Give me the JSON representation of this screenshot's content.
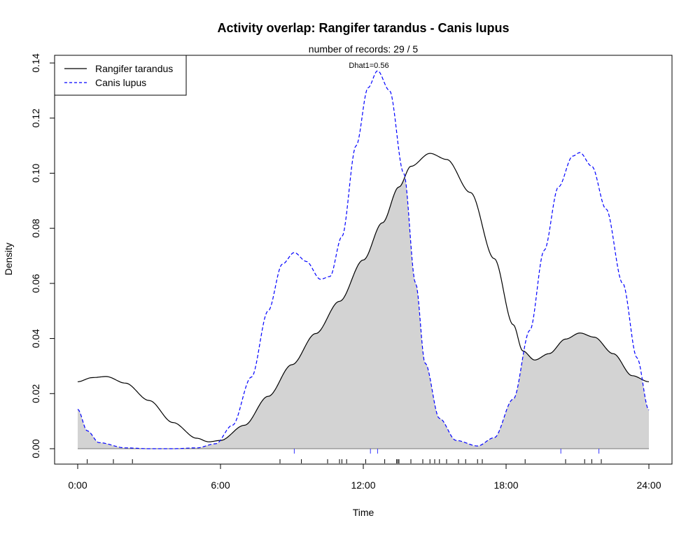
{
  "chart_data": {
    "type": "area",
    "title": "Activity overlap:  Rangifer tarandus - Canis lupus",
    "subtitle": "number of records: 29 / 5",
    "annotation": "Dhat1=0.56",
    "xlabel": "Time",
    "ylabel": "Density",
    "xlim": [
      0,
      24
    ],
    "ylim": [
      0,
      0.14
    ],
    "x_ticks": [
      0,
      6,
      12,
      18,
      24
    ],
    "x_tick_labels": [
      "0:00",
      "6:00",
      "12:00",
      "18:00",
      "24:00"
    ],
    "y_ticks": [
      0,
      0.02,
      0.04,
      0.06,
      0.08,
      0.1,
      0.12,
      0.14
    ],
    "y_tick_labels": [
      "0.00",
      "0.02",
      "0.04",
      "0.06",
      "0.08",
      "0.10",
      "0.12",
      "0.14"
    ],
    "legend_position": "top-left",
    "overlap_fill_color": "#d3d3d3",
    "series": [
      {
        "name": "Rangifer tarandus",
        "line_style": "solid",
        "color": "#000000",
        "points": [
          [
            0,
            0.0243
          ],
          [
            0.6,
            0.0258
          ],
          [
            1.2,
            0.0262
          ],
          [
            2,
            0.0238
          ],
          [
            3,
            0.0175
          ],
          [
            4,
            0.0095
          ],
          [
            5,
            0.0038
          ],
          [
            5.5,
            0.0025
          ],
          [
            6,
            0.003
          ],
          [
            7,
            0.0085
          ],
          [
            8,
            0.019
          ],
          [
            9,
            0.0305
          ],
          [
            10,
            0.0418
          ],
          [
            11,
            0.0535
          ],
          [
            12,
            0.0685
          ],
          [
            12.8,
            0.082
          ],
          [
            13.5,
            0.095
          ],
          [
            14,
            0.1025
          ],
          [
            14.8,
            0.1072
          ],
          [
            15.5,
            0.105
          ],
          [
            16.5,
            0.093
          ],
          [
            17.5,
            0.069
          ],
          [
            18.3,
            0.045
          ],
          [
            18.7,
            0.0355
          ],
          [
            19.2,
            0.0322
          ],
          [
            19.8,
            0.0345
          ],
          [
            20.5,
            0.0398
          ],
          [
            21.1,
            0.042
          ],
          [
            21.7,
            0.0405
          ],
          [
            22.5,
            0.0345
          ],
          [
            23.3,
            0.0265
          ],
          [
            24,
            0.0243
          ]
        ]
      },
      {
        "name": "Canis lupus",
        "line_style": "dashed",
        "color": "#0000ff",
        "points": [
          [
            0,
            0.0143
          ],
          [
            0.4,
            0.0065
          ],
          [
            0.9,
            0.0022
          ],
          [
            2,
            0.0003
          ],
          [
            3,
            0
          ],
          [
            4,
            0
          ],
          [
            5,
            0.0003
          ],
          [
            5.8,
            0.0018
          ],
          [
            6.5,
            0.0085
          ],
          [
            7.3,
            0.026
          ],
          [
            8,
            0.05
          ],
          [
            8.6,
            0.067
          ],
          [
            9.1,
            0.0712
          ],
          [
            9.6,
            0.068
          ],
          [
            10.2,
            0.0615
          ],
          [
            10.6,
            0.0625
          ],
          [
            11.1,
            0.077
          ],
          [
            11.7,
            0.11
          ],
          [
            12.2,
            0.131
          ],
          [
            12.6,
            0.1372
          ],
          [
            13.1,
            0.13
          ],
          [
            13.7,
            0.1
          ],
          [
            14.2,
            0.06
          ],
          [
            14.6,
            0.031
          ],
          [
            15.2,
            0.011
          ],
          [
            15.9,
            0.003
          ],
          [
            16.8,
            0.001
          ],
          [
            17.5,
            0.004
          ],
          [
            18.3,
            0.018
          ],
          [
            19,
            0.043
          ],
          [
            19.6,
            0.072
          ],
          [
            20.2,
            0.095
          ],
          [
            20.8,
            0.1062
          ],
          [
            21.1,
            0.1075
          ],
          [
            21.6,
            0.1025
          ],
          [
            22.2,
            0.087
          ],
          [
            22.9,
            0.06
          ],
          [
            23.5,
            0.033
          ],
          [
            24,
            0.014
          ]
        ]
      }
    ],
    "rug": {
      "Rangifer tarandus": [
        0.4,
        1.5,
        2.3,
        8.5,
        9.4,
        10.5,
        11.0,
        11.1,
        11.3,
        12.1,
        12.9,
        13.4,
        13.45,
        13.5,
        14.0,
        14.5,
        14.8,
        15.0,
        15.2,
        15.5,
        16.0,
        16.3,
        16.8,
        17.0,
        18.8,
        20.5,
        21.3,
        21.6,
        22.0
      ],
      "Canis lupus": [
        9.1,
        12.3,
        12.6,
        20.3,
        21.9
      ]
    }
  }
}
